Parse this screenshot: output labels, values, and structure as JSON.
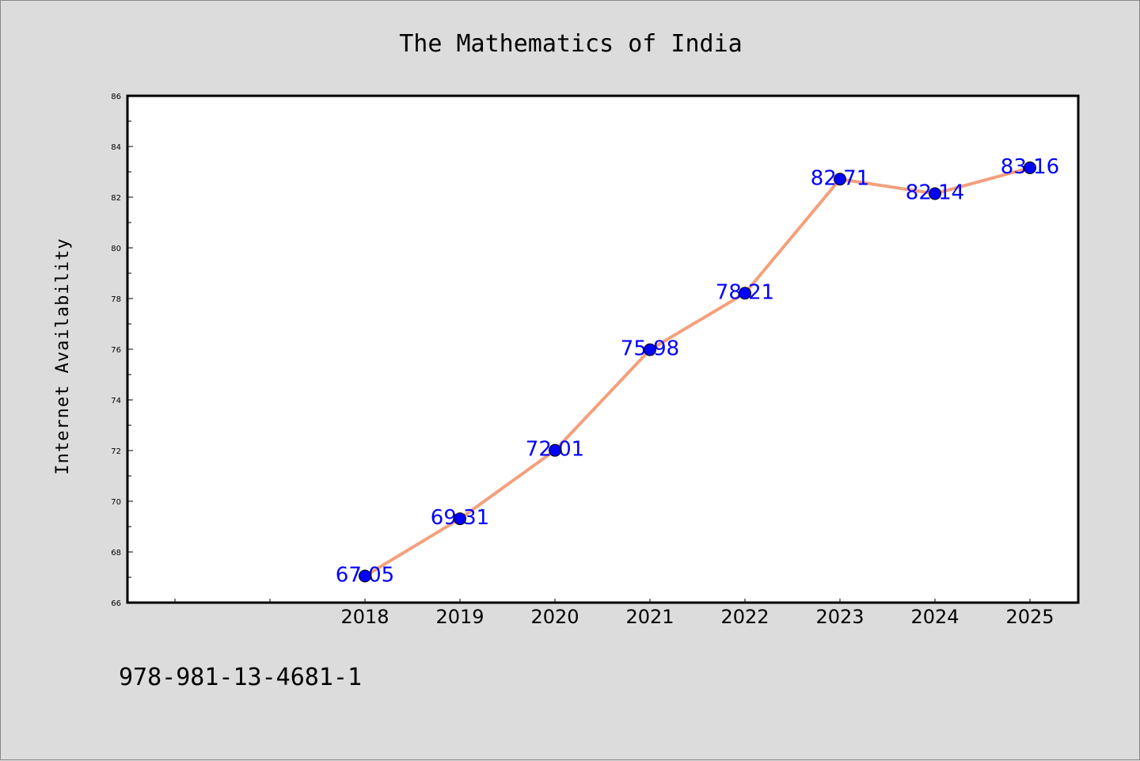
{
  "chart_data": {
    "type": "line",
    "title": "The Mathematics of India",
    "ylabel": "Internet Availability",
    "xlabel": "",
    "categories": [
      "2018",
      "2019",
      "2020",
      "2021",
      "2022",
      "2023",
      "2024",
      "2025"
    ],
    "values": [
      67.05,
      69.31,
      72.01,
      75.98,
      78.21,
      82.71,
      82.14,
      83.16
    ],
    "data_labels": [
      "67.05",
      "69.31",
      "72.01",
      "75.98",
      "78.21",
      "82.71",
      "82.14",
      "83.16"
    ],
    "ylim": [
      66,
      86
    ],
    "yticks": [
      66,
      68,
      70,
      72,
      74,
      76,
      78,
      80,
      82,
      84,
      86
    ],
    "grid": false,
    "line_color": "#f4a07c",
    "marker_color": "#0000ff",
    "label_color": "#0000ff"
  },
  "footer": {
    "isbn": "978-981-13-4681-1"
  }
}
